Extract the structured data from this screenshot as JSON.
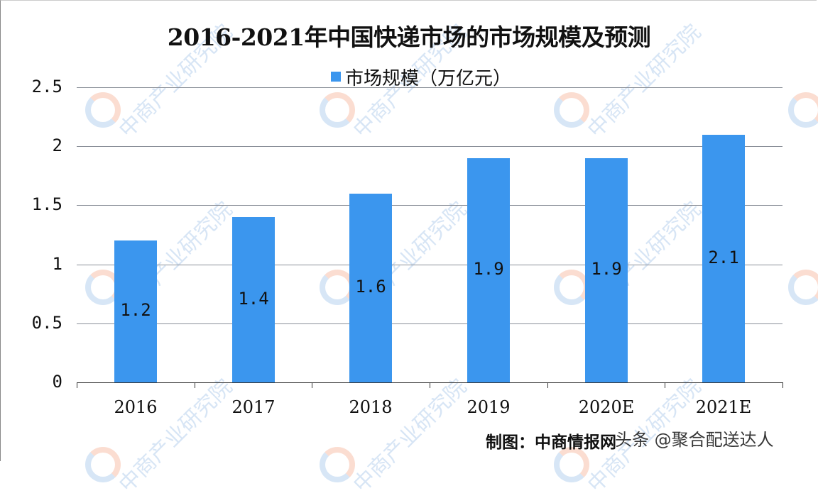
{
  "chart_data": {
    "type": "bar",
    "title": "2016-2021年中国快递市场的市场规模及预测",
    "categories": [
      "2016",
      "2017",
      "2018",
      "2019",
      "2020E",
      "2021E"
    ],
    "series": [
      {
        "name": "市场规模（万亿元）",
        "values": [
          1.2,
          1.4,
          1.6,
          1.9,
          1.9,
          2.1
        ],
        "color": "#3B96EE"
      }
    ],
    "data_labels": [
      "1.2",
      "1.4",
      "1.6",
      "1.9",
      "1.9",
      "2.1"
    ],
    "xlabel": "",
    "ylabel": "",
    "ylim": [
      0,
      2.5
    ],
    "yticks": [
      "0",
      "0.5",
      "1",
      "1.5",
      "2",
      "2.5"
    ],
    "grid": true,
    "legend_position": "top"
  },
  "legend": {
    "label": "市场规模（万亿元）",
    "color": "#3B96EE"
  },
  "source": "制图：中商情报网",
  "overlay_watermark": "头条 @聚合配送达人",
  "background_watermark": "中商产业研究院"
}
